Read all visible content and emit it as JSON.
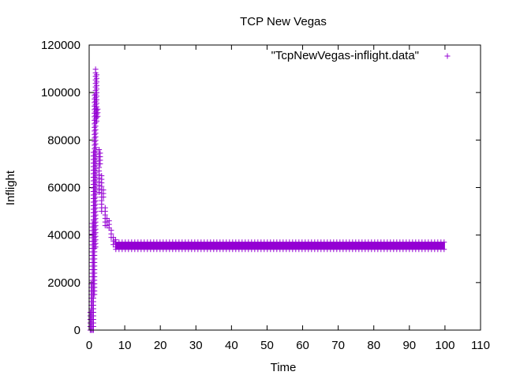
{
  "chart_data": {
    "type": "scatter",
    "title": "TCP New Vegas",
    "xlabel": "Time",
    "ylabel": "Inflight",
    "xlim": [
      0,
      110
    ],
    "ylim": [
      0,
      120000
    ],
    "x_ticks": [
      0,
      10,
      20,
      30,
      40,
      50,
      60,
      70,
      80,
      90,
      100,
      110
    ],
    "y_ticks": [
      0,
      20000,
      40000,
      60000,
      80000,
      100000,
      120000
    ],
    "grid": false,
    "legend_position": "top-right",
    "marker": "+",
    "series": [
      {
        "name": "\"TcpNewVegas-inflight.data\"",
        "color": "#9400d3",
        "spikes": [
          {
            "x": 0.3,
            "y_min": 0,
            "y_max": 8000
          },
          {
            "x": 0.6,
            "y_min": 0,
            "y_max": 20000
          },
          {
            "x": 0.9,
            "y_min": 0,
            "y_max": 45000
          },
          {
            "x": 1.2,
            "y_min": 0,
            "y_max": 75000
          },
          {
            "x": 1.5,
            "y_min": 15000,
            "y_max": 100000
          },
          {
            "x": 1.8,
            "y_min": 35000,
            "y_max": 110000
          },
          {
            "x": 2.1,
            "y_min": 88000,
            "y_max": 108000
          },
          {
            "x": 2.4,
            "y_min": 90000,
            "y_max": 94000
          },
          {
            "x": 2.8,
            "y_min": 58000,
            "y_max": 76000
          },
          {
            "x": 3.1,
            "y_min": 70000,
            "y_max": 75000
          },
          {
            "x": 3.5,
            "y_min": 50000,
            "y_max": 66000
          },
          {
            "x": 4.0,
            "y_min": 56000,
            "y_max": 60000
          },
          {
            "x": 4.5,
            "y_min": 44000,
            "y_max": 52000
          },
          {
            "x": 5.0,
            "y_min": 44000,
            "y_max": 48000
          },
          {
            "x": 5.6,
            "y_min": 43000,
            "y_max": 46000
          },
          {
            "x": 6.2,
            "y_min": 39000,
            "y_max": 42000
          },
          {
            "x": 6.8,
            "y_min": 36000,
            "y_max": 40000
          },
          {
            "x": 7.4,
            "y_min": 35000,
            "y_max": 38000
          }
        ],
        "band": {
          "x_start": 7.5,
          "x_end": 100,
          "y_min": 34000,
          "y_max": 37000
        }
      }
    ]
  }
}
